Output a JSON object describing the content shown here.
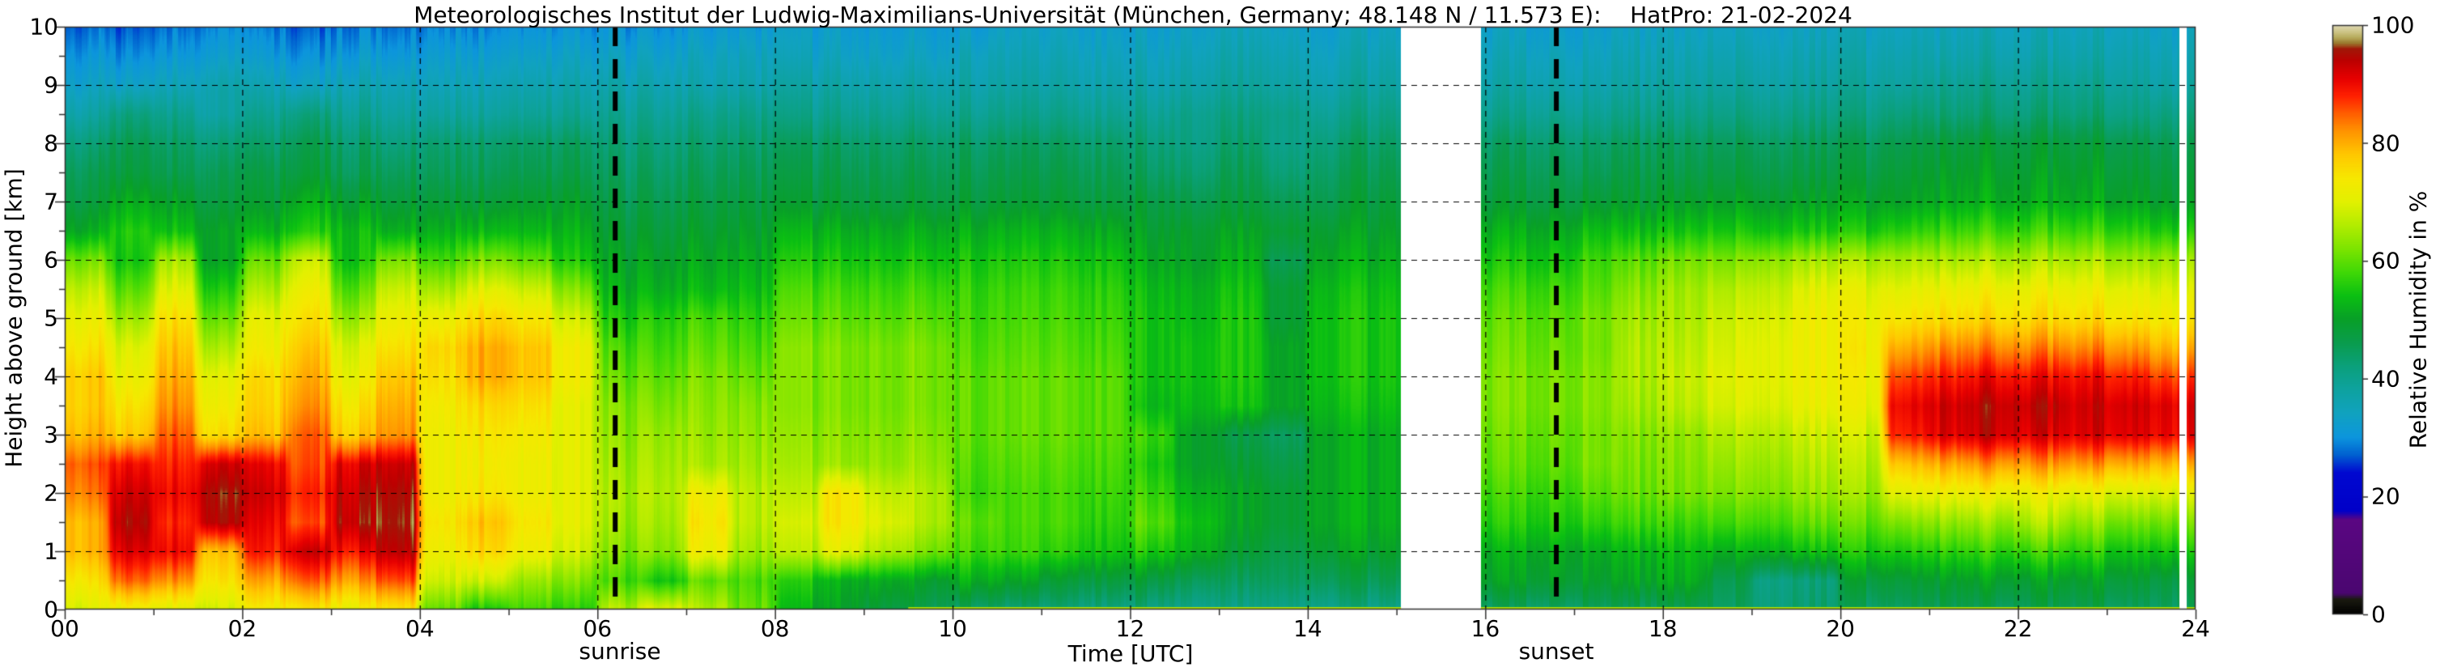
{
  "title": "Meteorologisches Institut der Ludwig-Maximilians-Universität (München, Germany; 48.148 N / 11.573 E):    HatPro: 21-02-2024",
  "axes": {
    "x": {
      "label": "Time [UTC]",
      "min": 0,
      "max": 24,
      "major_ticks": [
        0,
        2,
        4,
        6,
        8,
        10,
        12,
        14,
        16,
        18,
        20,
        22,
        24
      ],
      "tick_labels": [
        "00",
        "02",
        "04",
        "06",
        "08",
        "10",
        "12",
        "14",
        "16",
        "18",
        "20",
        "22",
        "24"
      ],
      "minor_ticks": [
        1,
        3,
        5,
        7,
        9,
        11,
        13,
        15,
        17,
        19,
        21,
        23
      ]
    },
    "y": {
      "label": "Height above ground [km]",
      "min": 0,
      "max": 10,
      "major_ticks": [
        0,
        1,
        2,
        3,
        4,
        5,
        6,
        7,
        8,
        9,
        10
      ],
      "tick_labels": [
        "0",
        "1",
        "2",
        "3",
        "4",
        "5",
        "6",
        "7",
        "8",
        "9",
        "10"
      ]
    },
    "colorbar": {
      "label": "Relative Humidity in %",
      "min": 0,
      "max": 100,
      "ticks": [
        0,
        20,
        40,
        60,
        80,
        100
      ],
      "tick_labels": [
        "0",
        "20",
        "40",
        "60",
        "80",
        "100"
      ]
    }
  },
  "annotations": {
    "sunrise": {
      "label": "sunrise",
      "time_utc": 6.2
    },
    "sunset": {
      "label": "sunset",
      "time_utc": 16.8
    }
  },
  "chart_data": {
    "type": "heatmap",
    "title": "Relative humidity time-height cross-section, HatPro microwave radiometer, 21-02-2024",
    "xlabel": "Time [UTC]",
    "ylabel": "Height above ground [km]",
    "zlabel": "Relative Humidity in %",
    "x_range_hours": [
      0,
      24
    ],
    "y_range_km": [
      0,
      10
    ],
    "z_range_percent": [
      0,
      100
    ],
    "grid": true,
    "x_hours": [
      0.25,
      0.75,
      1.25,
      1.75,
      2.25,
      2.75,
      3.25,
      3.75,
      4.25,
      4.75,
      5.25,
      5.75,
      6.25,
      6.75,
      7.25,
      7.75,
      8.25,
      8.75,
      9.25,
      9.75,
      10.25,
      10.75,
      11.25,
      11.75,
      12.25,
      12.75,
      13.25,
      13.75,
      14.25,
      14.75,
      15.25,
      15.75,
      16.25,
      16.75,
      17.25,
      17.75,
      18.25,
      18.75,
      19.25,
      19.75,
      20.25,
      20.75,
      21.25,
      21.75,
      22.25,
      22.75,
      23.25,
      23.75
    ],
    "heights_km": [
      10,
      9.5,
      9,
      8.5,
      8,
      7.5,
      7,
      6.5,
      6,
      5.5,
      5,
      4.5,
      4,
      3.5,
      3,
      2.5,
      2,
      1.5,
      1,
      0.5,
      0
    ],
    "values": [
      [
        28,
        27,
        28,
        29,
        28,
        27,
        29,
        28,
        29,
        29,
        30,
        30,
        30,
        30,
        31,
        31,
        32,
        32,
        32,
        32,
        32,
        33,
        33,
        33,
        33,
        33,
        34,
        33,
        33,
        34,
        null,
        null,
        33,
        33,
        33,
        34,
        34,
        34,
        34,
        34,
        34,
        34,
        34,
        35,
        35,
        35,
        35,
        34
      ],
      [
        31,
        30,
        31,
        32,
        31,
        30,
        32,
        31,
        32,
        32,
        33,
        33,
        33,
        33,
        34,
        34,
        34,
        34,
        34,
        34,
        35,
        35,
        35,
        35,
        35,
        35,
        36,
        35,
        35,
        36,
        null,
        null,
        35,
        35,
        35,
        36,
        36,
        36,
        36,
        36,
        36,
        36,
        36,
        37,
        37,
        37,
        37,
        36
      ],
      [
        34,
        34,
        35,
        36,
        35,
        34,
        36,
        35,
        35,
        35,
        36,
        36,
        36,
        36,
        36,
        36,
        37,
        37,
        37,
        37,
        37,
        37,
        37,
        37,
        37,
        37,
        38,
        37,
        37,
        38,
        null,
        null,
        37,
        37,
        37,
        38,
        38,
        38,
        38,
        38,
        38,
        38,
        39,
        40,
        40,
        40,
        39,
        38
      ],
      [
        38,
        42,
        40,
        37,
        39,
        42,
        40,
        38,
        38,
        38,
        39,
        39,
        39,
        39,
        40,
        40,
        40,
        40,
        40,
        40,
        40,
        40,
        40,
        40,
        40,
        40,
        41,
        40,
        40,
        41,
        null,
        null,
        40,
        40,
        40,
        41,
        41,
        41,
        41,
        41,
        41,
        42,
        42,
        43,
        43,
        43,
        42,
        42
      ],
      [
        43,
        46,
        44,
        42,
        43,
        46,
        44,
        42,
        43,
        43,
        44,
        44,
        42,
        42,
        43,
        43,
        44,
        44,
        44,
        44,
        44,
        44,
        44,
        44,
        43,
        41,
        43,
        40,
        43,
        44,
        null,
        null,
        44,
        44,
        44,
        45,
        45,
        45,
        45,
        45,
        45,
        46,
        47,
        48,
        48,
        48,
        47,
        46
      ],
      [
        46,
        48,
        46,
        45,
        46,
        48,
        46,
        45,
        45,
        45,
        46,
        46,
        44,
        44,
        45,
        45,
        46,
        46,
        46,
        46,
        46,
        46,
        46,
        46,
        45,
        43,
        45,
        42,
        45,
        46,
        null,
        null,
        46,
        46,
        46,
        47,
        47,
        47,
        47,
        47,
        47,
        48,
        49,
        50,
        50,
        50,
        49,
        48
      ],
      [
        48,
        52,
        50,
        47,
        48,
        52,
        50,
        48,
        48,
        48,
        49,
        49,
        46,
        46,
        47,
        47,
        48,
        48,
        48,
        48,
        48,
        48,
        48,
        48,
        48,
        46,
        47,
        45,
        47,
        48,
        null,
        null,
        48,
        48,
        49,
        49,
        50,
        50,
        50,
        50,
        50,
        50,
        51,
        52,
        52,
        52,
        51,
        50
      ],
      [
        52,
        56,
        54,
        50,
        52,
        56,
        54,
        52,
        52,
        53,
        53,
        52,
        48,
        48,
        49,
        49,
        52,
        52,
        52,
        52,
        52,
        52,
        52,
        52,
        50,
        49,
        50,
        48,
        50,
        50,
        null,
        null,
        52,
        52,
        54,
        54,
        55,
        55,
        55,
        55,
        55,
        56,
        57,
        58,
        58,
        58,
        57,
        56
      ],
      [
        62,
        55,
        65,
        50,
        60,
        68,
        55,
        62,
        58,
        62,
        60,
        55,
        50,
        50,
        51,
        51,
        55,
        55,
        55,
        55,
        55,
        55,
        55,
        55,
        52,
        50,
        52,
        45,
        52,
        52,
        null,
        null,
        55,
        55,
        58,
        60,
        62,
        62,
        64,
        65,
        65,
        65,
        65,
        66,
        66,
        66,
        65,
        65
      ],
      [
        68,
        60,
        70,
        55,
        65,
        72,
        60,
        68,
        65,
        70,
        68,
        62,
        52,
        52,
        53,
        53,
        58,
        58,
        58,
        58,
        57,
        57,
        57,
        57,
        54,
        52,
        54,
        48,
        54,
        54,
        null,
        null,
        58,
        58,
        60,
        63,
        65,
        66,
        68,
        70,
        70,
        70,
        71,
        72,
        72,
        72,
        71,
        70
      ],
      [
        72,
        65,
        75,
        60,
        70,
        75,
        65,
        72,
        72,
        76,
        74,
        68,
        55,
        56,
        58,
        56,
        60,
        60,
        60,
        60,
        58,
        58,
        58,
        58,
        55,
        53,
        55,
        48,
        55,
        55,
        null,
        null,
        60,
        60,
        62,
        65,
        66,
        68,
        70,
        72,
        72,
        74,
        75,
        76,
        76,
        76,
        75,
        74
      ],
      [
        75,
        70,
        78,
        65,
        72,
        78,
        70,
        75,
        76,
        80,
        78,
        72,
        58,
        58,
        60,
        58,
        62,
        62,
        62,
        62,
        59,
        59,
        59,
        59,
        55,
        54,
        55,
        50,
        55,
        55,
        null,
        null,
        61,
        61,
        62,
        66,
        67,
        69,
        71,
        72,
        73,
        80,
        82,
        83,
        83,
        83,
        82,
        80
      ],
      [
        78,
        72,
        80,
        70,
        75,
        80,
        72,
        78,
        75,
        80,
        78,
        72,
        60,
        60,
        62,
        60,
        62,
        62,
        62,
        62,
        60,
        60,
        60,
        60,
        55,
        54,
        55,
        50,
        55,
        55,
        null,
        null,
        62,
        62,
        63,
        66,
        68,
        70,
        71,
        72,
        72,
        86,
        88,
        90,
        90,
        90,
        89,
        87
      ],
      [
        78,
        75,
        82,
        72,
        76,
        82,
        75,
        80,
        73,
        76,
        75,
        70,
        62,
        62,
        63,
        62,
        62,
        62,
        62,
        62,
        60,
        60,
        60,
        60,
        54,
        53,
        54,
        50,
        54,
        54,
        null,
        null,
        62,
        62,
        63,
        65,
        67,
        69,
        70,
        71,
        71,
        90,
        92,
        94,
        94,
        93,
        93,
        92
      ],
      [
        80,
        78,
        85,
        75,
        78,
        85,
        78,
        82,
        72,
        74,
        73,
        70,
        63,
        64,
        64,
        63,
        63,
        63,
        63,
        63,
        60,
        60,
        60,
        60,
        58,
        50,
        46,
        44,
        52,
        52,
        null,
        null,
        61,
        61,
        62,
        63,
        64,
        66,
        67,
        68,
        68,
        88,
        91,
        93,
        92,
        92,
        92,
        91
      ],
      [
        86,
        90,
        88,
        92,
        90,
        86,
        92,
        93,
        72,
        73,
        72,
        70,
        64,
        65,
        65,
        64,
        64,
        64,
        64,
        64,
        59,
        59,
        59,
        59,
        56,
        50,
        48,
        46,
        52,
        52,
        null,
        null,
        60,
        60,
        62,
        62,
        63,
        64,
        65,
        66,
        66,
        78,
        80,
        82,
        82,
        82,
        81,
        80
      ],
      [
        84,
        93,
        90,
        95,
        92,
        88,
        94,
        95,
        72,
        74,
        72,
        70,
        65,
        66,
        72,
        66,
        66,
        74,
        68,
        66,
        58,
        58,
        58,
        58,
        58,
        52,
        50,
        48,
        52,
        52,
        null,
        null,
        58,
        58,
        60,
        61,
        62,
        62,
        63,
        64,
        64,
        70,
        71,
        72,
        72,
        71,
        70,
        70
      ],
      [
        80,
        95,
        88,
        94,
        90,
        86,
        95,
        96,
        74,
        78,
        74,
        70,
        64,
        65,
        74,
        66,
        68,
        74,
        70,
        66,
        60,
        58,
        58,
        57,
        60,
        54,
        50,
        48,
        52,
        52,
        null,
        null,
        56,
        56,
        57,
        58,
        58,
        58,
        59,
        60,
        60,
        62,
        63,
        64,
        66,
        64,
        62,
        62
      ],
      [
        80,
        92,
        90,
        78,
        88,
        93,
        90,
        94,
        72,
        76,
        72,
        68,
        62,
        63,
        72,
        64,
        66,
        70,
        66,
        62,
        58,
        57,
        56,
        55,
        56,
        52,
        48,
        46,
        50,
        50,
        null,
        null,
        52,
        52,
        52,
        53,
        54,
        52,
        53,
        54,
        55,
        55,
        56,
        57,
        58,
        57,
        55,
        55
      ],
      [
        75,
        85,
        82,
        74,
        80,
        85,
        82,
        86,
        68,
        68,
        64,
        62,
        58,
        55,
        60,
        58,
        55,
        52,
        52,
        50,
        52,
        50,
        48,
        48,
        48,
        45,
        44,
        44,
        46,
        46,
        null,
        null,
        50,
        50,
        50,
        51,
        52,
        46,
        42,
        42,
        48,
        48,
        49,
        50,
        50,
        50,
        49,
        48
      ],
      [
        70,
        72,
        70,
        68,
        72,
        74,
        72,
        74,
        60,
        55,
        58,
        56,
        66,
        70,
        66,
        60,
        52,
        50,
        48,
        46,
        44,
        42,
        42,
        42,
        42,
        40,
        40,
        40,
        41,
        41,
        null,
        null,
        44,
        44,
        45,
        45,
        46,
        44,
        43,
        43,
        44,
        44,
        45,
        45,
        46,
        46,
        45,
        45
      ]
    ],
    "data_gaps_hours": [
      [
        15.05,
        15.95
      ],
      [
        23.82,
        23.9
      ]
    ],
    "colormap_stops": [
      [
        0,
        "#000000"
      ],
      [
        2.5,
        "#1a1a10"
      ],
      [
        3.5,
        "#4a0670"
      ],
      [
        16,
        "#5a0682"
      ],
      [
        17.5,
        "#0000c8"
      ],
      [
        24,
        "#0008d0"
      ],
      [
        27,
        "#0060d0"
      ],
      [
        30,
        "#0c95dd"
      ],
      [
        34,
        "#10a2c0"
      ],
      [
        38,
        "#0ea2a0"
      ],
      [
        42,
        "#0ba07c"
      ],
      [
        46,
        "#099c4e"
      ],
      [
        50,
        "#089f28"
      ],
      [
        54,
        "#0abf12"
      ],
      [
        58,
        "#3fd806"
      ],
      [
        62,
        "#7ce400"
      ],
      [
        66,
        "#b2ec00"
      ],
      [
        70,
        "#e2f000"
      ],
      [
        74,
        "#f6e800"
      ],
      [
        78,
        "#ffc800"
      ],
      [
        82,
        "#ff9400"
      ],
      [
        85,
        "#ff5e00"
      ],
      [
        88,
        "#ff2000"
      ],
      [
        91,
        "#e60000"
      ],
      [
        94,
        "#bc0000"
      ],
      [
        96,
        "#a01808"
      ],
      [
        97,
        "#9a7a2e"
      ],
      [
        98,
        "#b8ad5e"
      ],
      [
        99,
        "#cfc68a"
      ],
      [
        100,
        "#ded8b2"
      ]
    ],
    "gridline_color": "#000000",
    "sun_line_color": "#000000",
    "gap_color": "#ffffff"
  }
}
